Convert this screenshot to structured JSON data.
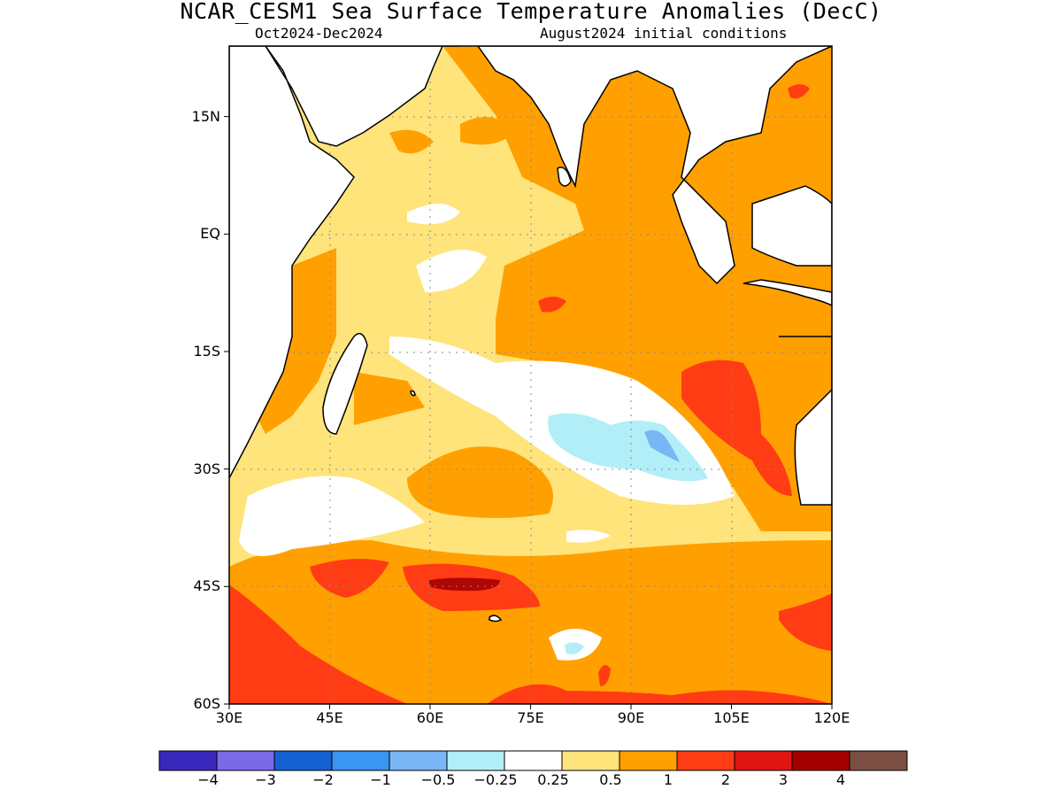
{
  "title": "NCAR_CESM1 Sea Surface Temperature Anomalies (DecC)",
  "subtitle_left": "Oct2024-Dec2024",
  "subtitle_right": "August2024 initial conditions",
  "map": {
    "lon_range": [
      30,
      120
    ],
    "lat_range": [
      -60,
      24
    ],
    "lat_ticks": [
      {
        "value": 15,
        "label": "15N"
      },
      {
        "value": 0,
        "label": "EQ"
      },
      {
        "value": -15,
        "label": "15S"
      },
      {
        "value": -30,
        "label": "30S"
      },
      {
        "value": -45,
        "label": "45S"
      },
      {
        "value": -60,
        "label": "60S"
      }
    ],
    "lon_ticks": [
      {
        "value": 30,
        "label": "30E"
      },
      {
        "value": 45,
        "label": "45E"
      },
      {
        "value": 60,
        "label": "60E"
      },
      {
        "value": 75,
        "label": "75E"
      },
      {
        "value": 90,
        "label": "90E"
      },
      {
        "value": 105,
        "label": "105E"
      },
      {
        "value": 120,
        "label": "120E"
      }
    ],
    "regions": [
      {
        "name": "indian-ocean-positive",
        "level": "0.5 to 1"
      },
      {
        "name": "east-indian-ocean",
        "level": "0.5 to 1"
      },
      {
        "name": "southern-ocean-band",
        "level": "1 to 2"
      },
      {
        "name": "off-western-australia",
        "level": "1 to 2"
      },
      {
        "name": "central-south-indian",
        "level": "-0.5 to -0.25"
      },
      {
        "name": "central-south-indian-core",
        "level": "-1 to -0.5"
      },
      {
        "name": "south-of-60e-core",
        "level": "2 to 3"
      }
    ]
  },
  "colorbar": {
    "colors": [
      "#3a28bc",
      "#7a6ae8",
      "#1461d2",
      "#3a96f0",
      "#78b6f6",
      "#b2eef8",
      "#ffffff",
      "#ffe47c",
      "#ffa000",
      "#ff3c14",
      "#e11414",
      "#a50000",
      "#7a4e40"
    ],
    "labels": [
      "−4",
      "−3",
      "−2",
      "−1",
      "−0.5",
      "−0.25",
      "0.25",
      "0.5",
      "1",
      "2",
      "3",
      "4"
    ]
  }
}
